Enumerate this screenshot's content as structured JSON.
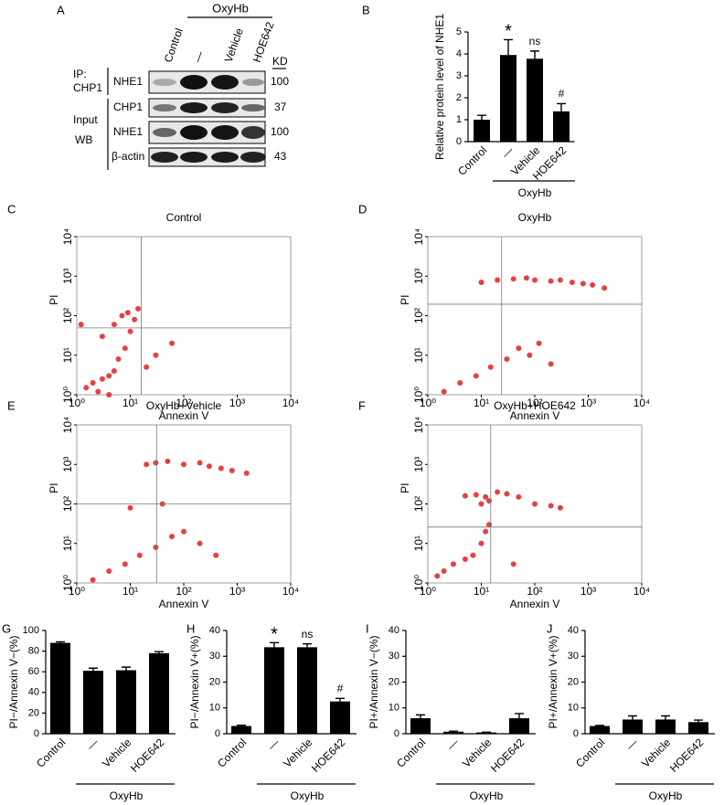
{
  "blot": {
    "panel": "A",
    "group": "OxyHb",
    "lanes": [
      "Control",
      "—",
      "Vehicle",
      "HOE642"
    ],
    "ip_label": [
      "IP:",
      "CHP1"
    ],
    "input_label": [
      "Input",
      "WB"
    ],
    "rows": [
      "NHE1",
      "CHP1",
      "NHE1",
      "β-actin"
    ],
    "kd_header": "KD",
    "kd": [
      100,
      37,
      100,
      43
    ]
  },
  "chart_data": [
    {
      "panel": "B",
      "type": "bar",
      "ylabel": "Relative protein level of NHE1",
      "categories": [
        "Control",
        "—",
        "Vehicle",
        "HOE642"
      ],
      "values": [
        1.0,
        3.95,
        3.78,
        1.38
      ],
      "errors": [
        0.2,
        0.7,
        0.35,
        0.35
      ],
      "annotations": [
        null,
        "*",
        "ns",
        "#"
      ],
      "group": "OxyHb",
      "ylim": [
        0,
        5
      ],
      "yticks": [
        0,
        1,
        2,
        3,
        4,
        5
      ],
      "color": "#000000"
    },
    {
      "panel": "C",
      "type": "scatter",
      "title": "Control",
      "xlabel": "Annexin V",
      "ylabel": "PI",
      "log": true,
      "xlim": [
        1,
        10000
      ],
      "ylim": [
        1,
        10000
      ],
      "xticks": [
        {
          "value": 1,
          "label": "10⁰"
        },
        {
          "value": 10,
          "label": "10¹"
        },
        {
          "value": 100,
          "label": "10²"
        },
        {
          "value": 1000,
          "label": "10³"
        },
        {
          "value": 10000,
          "label": "10⁴"
        }
      ],
      "yticks": [
        {
          "value": 1,
          "label": "10⁰"
        },
        {
          "value": 10,
          "label": "10¹"
        },
        {
          "value": 100,
          "label": "10²"
        },
        {
          "value": 1000,
          "label": "10³"
        },
        {
          "value": 10000,
          "label": "10⁴"
        }
      ],
      "gate": {
        "x": 16,
        "y": 49
      },
      "color": "#e0201e",
      "x": [
        1.5,
        2,
        3,
        4,
        5,
        2.5,
        6,
        8,
        10,
        12,
        14,
        3,
        5,
        7,
        9,
        20,
        30,
        60,
        1.2,
        4
      ],
      "y": [
        1.5,
        2,
        2.5,
        3,
        4,
        1.2,
        8,
        15,
        40,
        80,
        150,
        30,
        60,
        100,
        120,
        5,
        10,
        20,
        60,
        1
      ]
    },
    {
      "panel": "D",
      "type": "scatter",
      "title": "OxyHb",
      "xlabel": "Annexin V",
      "ylabel": "PI",
      "log": true,
      "xlim": [
        1,
        10000
      ],
      "ylim": [
        1,
        10000
      ],
      "xticks": [
        {
          "value": 1,
          "label": "10⁰"
        },
        {
          "value": 10,
          "label": "10¹"
        },
        {
          "value": 100,
          "label": "10²"
        },
        {
          "value": 1000,
          "label": "10³"
        },
        {
          "value": 10000,
          "label": "10⁴"
        }
      ],
      "yticks": [
        {
          "value": 1,
          "label": "10⁰"
        },
        {
          "value": 10,
          "label": "10¹"
        },
        {
          "value": 100,
          "label": "10²"
        },
        {
          "value": 1000,
          "label": "10³"
        },
        {
          "value": 10000,
          "label": "10⁴"
        }
      ],
      "gate": {
        "x": 24,
        "y": 195
      },
      "color": "#e0201e",
      "x": [
        2,
        4,
        8,
        15,
        30,
        50,
        80,
        120,
        200,
        10,
        20,
        40,
        70,
        100,
        200,
        300,
        500,
        800,
        1200,
        2000
      ],
      "y": [
        1.2,
        2,
        3,
        5,
        8,
        15,
        10,
        20,
        6,
        700,
        800,
        850,
        900,
        800,
        750,
        800,
        700,
        650,
        600,
        500
      ]
    },
    {
      "panel": "E",
      "type": "scatter",
      "title": "OxyHb+Vehicle",
      "xlabel": "Annexin V",
      "ylabel": "PI",
      "log": true,
      "xlim": [
        1,
        10000
      ],
      "ylim": [
        1,
        10000
      ],
      "xticks": [
        {
          "value": 1,
          "label": "10⁰"
        },
        {
          "value": 10,
          "label": "10¹"
        },
        {
          "value": 100,
          "label": "10²"
        },
        {
          "value": 1000,
          "label": "10³"
        },
        {
          "value": 10000,
          "label": "10⁴"
        }
      ],
      "yticks": [
        {
          "value": 1,
          "label": "10⁰"
        },
        {
          "value": 10,
          "label": "10¹"
        },
        {
          "value": 100,
          "label": "10²"
        },
        {
          "value": 1000,
          "label": "10³"
        },
        {
          "value": 10000,
          "label": "10⁴"
        }
      ],
      "gate": {
        "x": 31,
        "y": 100
      },
      "color": "#e0201e",
      "x": [
        2,
        4,
        8,
        15,
        30,
        60,
        100,
        200,
        400,
        20,
        30,
        50,
        100,
        200,
        300,
        500,
        800,
        1500,
        10,
        40
      ],
      "y": [
        1.2,
        2,
        3,
        5,
        8,
        15,
        20,
        10,
        5,
        1000,
        1100,
        1200,
        1000,
        1100,
        900,
        800,
        700,
        600,
        80,
        100
      ]
    },
    {
      "panel": "F",
      "type": "scatter",
      "title": "OxyHb+HOE642",
      "xlabel": "Annexin V",
      "ylabel": "PI",
      "log": true,
      "xlim": [
        1,
        10000
      ],
      "ylim": [
        1,
        10000
      ],
      "xticks": [
        {
          "value": 1,
          "label": "10⁰"
        },
        {
          "value": 10,
          "label": "10¹"
        },
        {
          "value": 100,
          "label": "10²"
        },
        {
          "value": 1000,
          "label": "10³"
        },
        {
          "value": 10000,
          "label": "10⁴"
        }
      ],
      "yticks": [
        {
          "value": 1,
          "label": "10⁰"
        },
        {
          "value": 10,
          "label": "10¹"
        },
        {
          "value": 100,
          "label": "10²"
        },
        {
          "value": 1000,
          "label": "10³"
        },
        {
          "value": 10000,
          "label": "10⁴"
        }
      ],
      "gate": {
        "x": 15,
        "y": 26
      },
      "color": "#e0201e",
      "x": [
        1.5,
        2,
        3,
        5,
        7,
        10,
        14,
        10,
        12,
        14,
        20,
        30,
        50,
        100,
        200,
        300,
        5,
        8,
        12,
        40
      ],
      "y": [
        1.5,
        2,
        3,
        4,
        5,
        10,
        30,
        100,
        150,
        120,
        200,
        180,
        150,
        100,
        90,
        80,
        160,
        170,
        20,
        3
      ]
    },
    {
      "panel": "G",
      "type": "bar",
      "ylabel": "PI−/Annexin V−(%)",
      "categories": [
        "Control",
        "—",
        "Vehicle",
        "HOE642"
      ],
      "values": [
        88,
        61,
        61.5,
        78
      ],
      "errors": [
        1,
        2.5,
        3,
        1.5
      ],
      "annotations": [
        null,
        null,
        null,
        null
      ],
      "group": "OxyHb",
      "ylim": [
        0,
        100
      ],
      "yticks": [
        0,
        20,
        40,
        60,
        80,
        100
      ],
      "color": "#000000"
    },
    {
      "panel": "H",
      "type": "bar",
      "ylabel": "PI−/Annexin V+(%)",
      "categories": [
        "Control",
        "—",
        "Vehicle",
        "HOE642"
      ],
      "values": [
        3,
        33.5,
        33.5,
        12.5
      ],
      "errors": [
        0.3,
        1.8,
        1.3,
        1.2
      ],
      "annotations": [
        null,
        "*",
        "ns",
        "#"
      ],
      "group": "OxyHb",
      "ylim": [
        0,
        40
      ],
      "yticks": [
        0,
        10,
        20,
        30,
        40
      ],
      "color": "#000000"
    },
    {
      "panel": "I",
      "type": "bar",
      "ylabel": "PI+/Annexin V−(%)",
      "categories": [
        "Control",
        "—",
        "Vehicle",
        "HOE642"
      ],
      "values": [
        6,
        0.8,
        0.5,
        6
      ],
      "errors": [
        1.3,
        0.2,
        0.1,
        1.8
      ],
      "annotations": [
        null,
        null,
        null,
        null
      ],
      "group": "OxyHb",
      "ylim": [
        0,
        40
      ],
      "yticks": [
        0,
        10,
        20,
        30,
        40
      ],
      "color": "#000000"
    },
    {
      "panel": "J",
      "type": "bar",
      "ylabel": "PI+/Annexin V+(%)",
      "categories": [
        "Control",
        "—",
        "Vehicle",
        "HOE642"
      ],
      "values": [
        3,
        5.5,
        5.5,
        4.5
      ],
      "errors": [
        0.2,
        1.4,
        1.4,
        0.8
      ],
      "annotations": [
        null,
        null,
        null,
        null
      ],
      "group": "OxyHb",
      "ylim": [
        0,
        40
      ],
      "yticks": [
        0,
        10,
        20,
        30,
        40
      ],
      "color": "#000000"
    }
  ]
}
